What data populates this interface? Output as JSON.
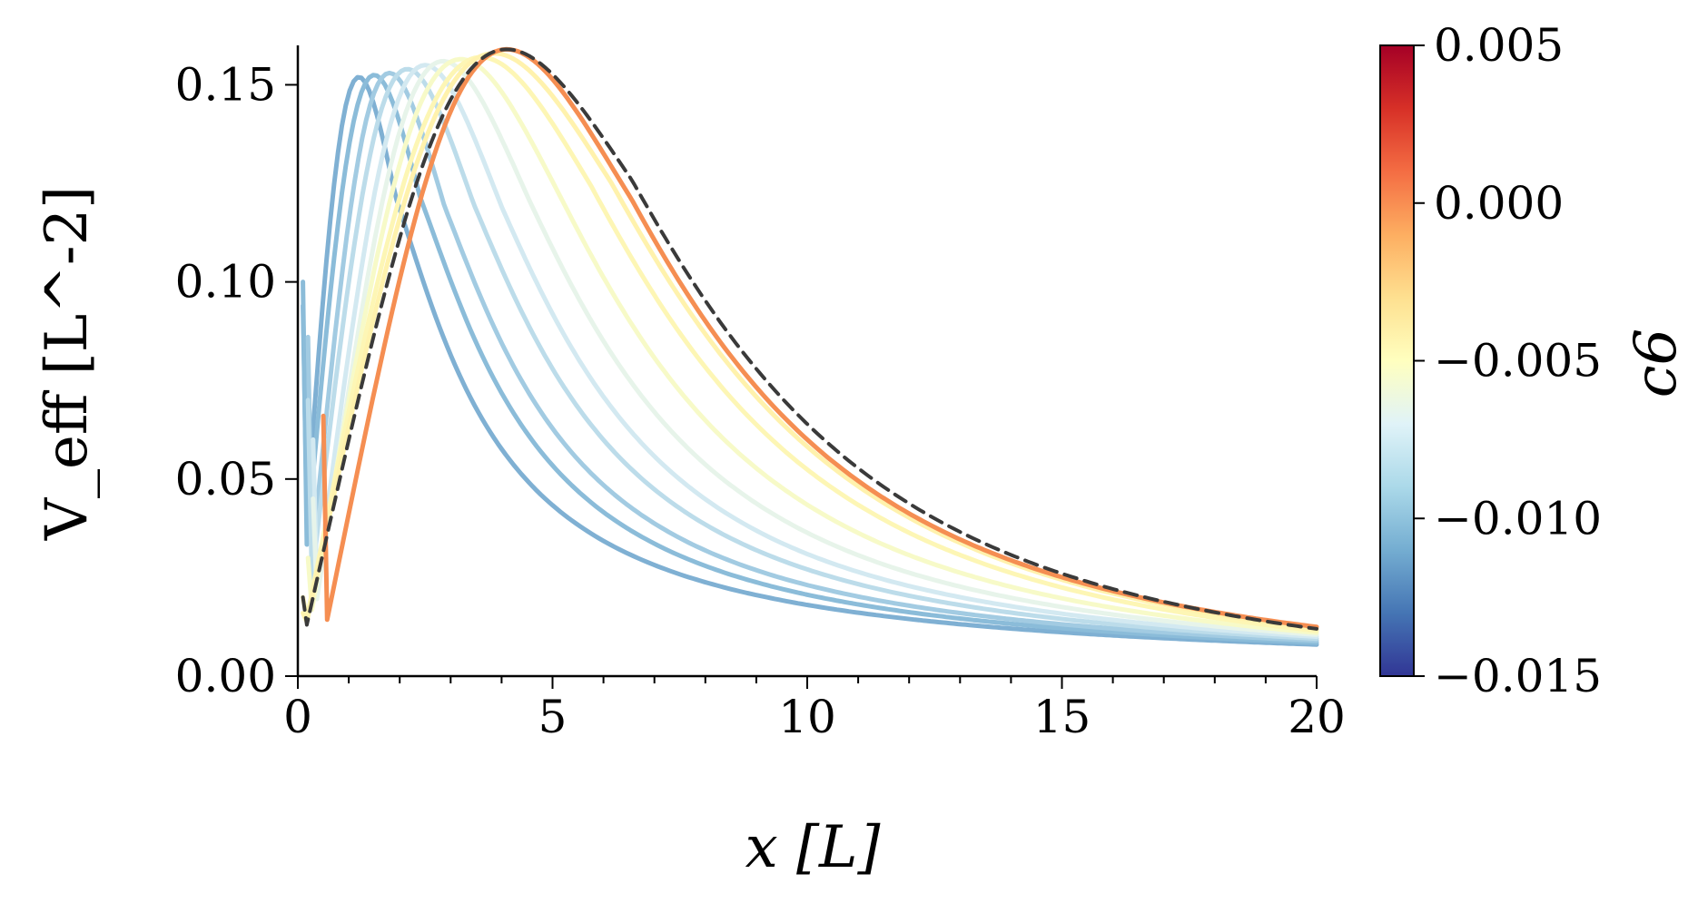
{
  "chart_data": {
    "type": "line",
    "xlabel": "x [L]",
    "ylabel": "V_eff [L^-2]",
    "xlim": [
      0,
      20
    ],
    "ylim": [
      0,
      0.16
    ],
    "x_ticks": [
      "0",
      "5",
      "10",
      "15",
      "20"
    ],
    "y_ticks": [
      "0.00",
      "0.05",
      "0.10",
      "0.15"
    ],
    "x_tick_values": [
      0,
      5,
      10,
      15,
      20
    ],
    "y_tick_values": [
      0,
      0.05,
      0.1,
      0.15
    ],
    "x_minor_step": 1,
    "grid": false,
    "colorbar": {
      "label": "c6",
      "min": -0.015,
      "max": 0.005,
      "ticks": [
        "0.005",
        "0.000",
        "−0.005",
        "−0.010",
        "−0.015"
      ],
      "tick_values": [
        0.005,
        0.0,
        -0.005,
        -0.01,
        -0.015
      ],
      "colormap": "RdYlBu_r",
      "colors": [
        "#313695",
        "#4575b4",
        "#74add1",
        "#abd9e9",
        "#e0f3f8",
        "#ffffbf",
        "#fee090",
        "#fdae61",
        "#f46d43",
        "#d73027",
        "#a50026"
      ]
    },
    "series": [
      {
        "c6": -0.0115,
        "color": "#7fb0d3",
        "x_start": 0.1,
        "y_start": 0.094,
        "peak_x": 1.2,
        "peak_y": 0.152,
        "end_y": 0.008
      },
      {
        "c6": -0.0108,
        "color": "#8bbcd9",
        "x_start": 0.1,
        "y_start": 0.1,
        "peak_x": 1.5,
        "peak_y": 0.1525,
        "end_y": 0.0085
      },
      {
        "c6": -0.01,
        "color": "#a2cbe2",
        "x_start": 0.2,
        "y_start": 0.086,
        "peak_x": 1.8,
        "peak_y": 0.153,
        "end_y": 0.009
      },
      {
        "c6": -0.009,
        "color": "#bcdcea",
        "x_start": 0.2,
        "y_start": 0.07,
        "peak_x": 2.15,
        "peak_y": 0.154,
        "end_y": 0.0095
      },
      {
        "c6": -0.008,
        "color": "#d3e9f1",
        "x_start": 0.3,
        "y_start": 0.06,
        "peak_x": 2.5,
        "peak_y": 0.155,
        "end_y": 0.01
      },
      {
        "c6": -0.007,
        "color": "#e7f4ea",
        "x_start": 0.3,
        "y_start": 0.045,
        "peak_x": 2.85,
        "peak_y": 0.156,
        "end_y": 0.0105
      },
      {
        "c6": -0.006,
        "color": "#f7fac8",
        "x_start": 0.2,
        "y_start": 0.03,
        "peak_x": 3.2,
        "peak_y": 0.1565,
        "end_y": 0.011
      },
      {
        "c6": -0.005,
        "color": "#fdf6b5",
        "x_start": 0.1,
        "y_start": 0.02,
        "peak_x": 3.6,
        "peak_y": 0.157,
        "end_y": 0.0115
      },
      {
        "c6": -0.004,
        "color": "#fff2ad",
        "x_start": 0.1,
        "y_start": 0.016,
        "peak_x": 3.85,
        "peak_y": 0.158,
        "end_y": 0.012
      },
      {
        "c6": 0.0,
        "color": "#f58e52",
        "x_start": 0.5,
        "y_start": 0.066,
        "peak_x": 4.1,
        "peak_y": 0.159,
        "end_y": 0.0125
      },
      {
        "c6": null,
        "color": "#3a3a3a",
        "dashed": true,
        "x_start": 0.1,
        "y_start": 0.02,
        "peak_x": 4.1,
        "peak_y": 0.159,
        "end_y": 0.012
      }
    ]
  }
}
